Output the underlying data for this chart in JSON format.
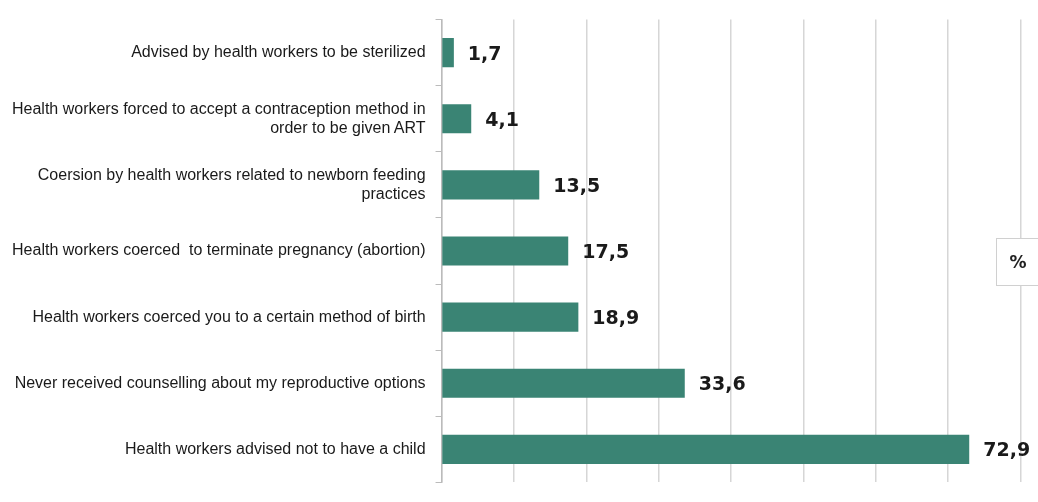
{
  "chart_data": {
    "type": "bar",
    "orientation": "horizontal",
    "categories": [
      "Advised by health workers to be sterilized",
      "Health workers forced to accept a contraception method in order to be given ART",
      "Coersion by health workers related to newborn feeding practices",
      "Health workers coerced  to terminate pregnancy (abortion)",
      "Health workers coerced you to a certain method of birth",
      "Never received counselling about my reproductive options",
      "Health workers advised not to have a child"
    ],
    "values": [
      1.7,
      4.1,
      13.5,
      17.5,
      18.9,
      33.6,
      72.9
    ],
    "value_labels": [
      "1,7",
      "4,1",
      "13,5",
      "17,5",
      "18,9",
      "33,6",
      "72,9"
    ],
    "color": "#3a8474",
    "xlim": [
      0,
      82.4
    ],
    "xticks": [
      {
        "value": 0,
        "label": null
      },
      {
        "value": 10,
        "label": null
      },
      {
        "value": 20,
        "label": null
      },
      {
        "value": 30,
        "label": null
      },
      {
        "value": 40,
        "label": null
      },
      {
        "value": 50,
        "label": null
      },
      {
        "value": 60,
        "label": null
      },
      {
        "value": 70,
        "label": null
      },
      {
        "value": 80,
        "label": null
      }
    ],
    "tick_labels": "y",
    "grid": "x",
    "legend": false,
    "annotations": [
      "%"
    ]
  }
}
